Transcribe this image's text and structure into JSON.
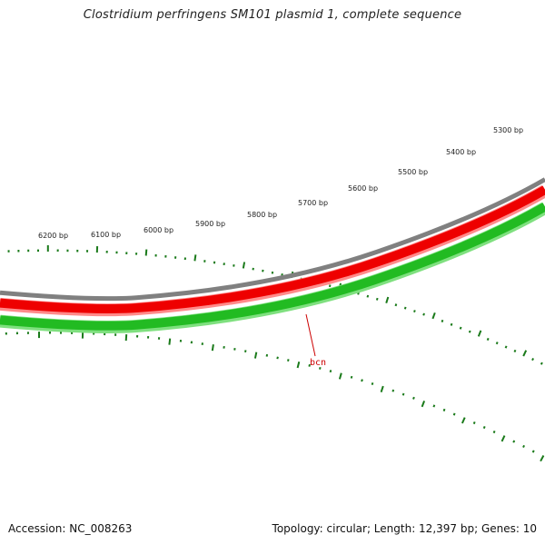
{
  "title": "Clostridium perfringens SM101 plasmid 1, complete sequence",
  "footer": {
    "accession": "Accession: NC_008263",
    "summary": "Topology: circular; Length: 12,397 bp; Genes: 10"
  },
  "map": {
    "ruler_labels": [
      "6200 bp",
      "6100 bp",
      "6000 bp",
      "5900 bp",
      "5800 bp",
      "5700 bp",
      "5600 bp",
      "5500 bp",
      "5400 bp",
      "5300 bp"
    ],
    "gene_labels": [
      "bcn"
    ],
    "colors": {
      "backbone": "#808080",
      "forward_strand": "#ee0000",
      "reverse_strand": "#22bb22",
      "ticks": "#1a7a1a",
      "gene_label": "#cc0000"
    }
  }
}
